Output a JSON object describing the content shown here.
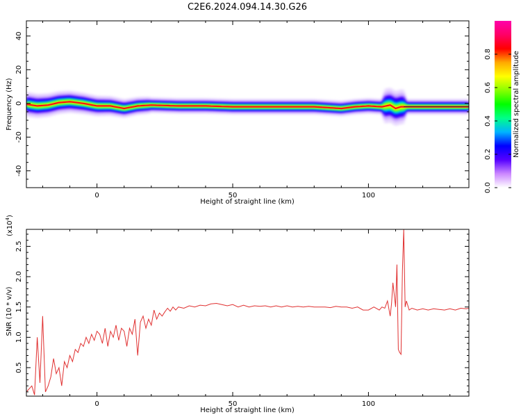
{
  "title": "C2E6.2024.094.14.30.G26",
  "chart_data": [
    {
      "type": "heatmap",
      "xlabel": "Height of straight line (km)",
      "ylabel": "Frequency (Hz)",
      "xlim": [
        -26,
        137
      ],
      "ylim": [
        -50,
        49
      ],
      "xticks": [
        0,
        50,
        100
      ],
      "yticks": [
        40,
        20,
        0,
        -20,
        -40
      ],
      "colorbar": {
        "label": "Normalized spectral amplitude",
        "range": [
          0,
          1
        ],
        "ticks": [
          "0.0",
          "0.2",
          "0.4",
          "0.6",
          "0.8"
        ],
        "colors": [
          "#ffffff",
          "#cc88ff",
          "#5500ff",
          "#0000ff",
          "#00b4ff",
          "#00ff88",
          "#00ff00",
          "#88ff00",
          "#ffff00",
          "#ffaa00",
          "#ff0000",
          "#ff0066",
          "#ff00aa"
        ]
      },
      "ridge": {
        "x": [
          -26,
          -22,
          -18,
          -14,
          -10,
          -5,
          0,
          5,
          10,
          15,
          20,
          30,
          40,
          50,
          60,
          70,
          80,
          90,
          95,
          100,
          105,
          108,
          110,
          112,
          115,
          120,
          130,
          137
        ],
        "freq": [
          -0.5,
          -1.5,
          -1,
          0.5,
          1,
          0,
          -1.5,
          -1.5,
          -3,
          -1.5,
          -1,
          -1.5,
          -1.5,
          -2,
          -2,
          -2,
          -2,
          -3,
          -2,
          -1.5,
          -2,
          -1,
          -3,
          -2,
          -2,
          -2,
          -2,
          -2
        ]
      },
      "grid": false
    },
    {
      "type": "line",
      "xlabel": "Height of straight line (km)",
      "ylabel": "SNR (10 * v/v)",
      "scale_label": "(x10",
      "scale_exp": "4",
      "scale_close": ")",
      "xlim": [
        -26,
        137
      ],
      "ylim": [
        0.03,
        2.78
      ],
      "xticks": [
        0,
        50,
        100
      ],
      "yticks": [
        "0.5",
        "1.0",
        "1.5",
        "2.0",
        "2.5"
      ],
      "color": "#e03030",
      "series": [
        {
          "x": [
            -26,
            -24,
            -23,
            -22,
            -21,
            -20,
            -19,
            -18,
            -17,
            -16,
            -15,
            -14,
            -13,
            -12,
            -11,
            -10,
            -9,
            -8,
            -7,
            -6,
            -5,
            -4,
            -3,
            -2,
            -1,
            0,
            1,
            2,
            3,
            4,
            5,
            6,
            7,
            8,
            9,
            10,
            11,
            12,
            13,
            14,
            15,
            16,
            17,
            18,
            19,
            20,
            21,
            22,
            23,
            24,
            25,
            26,
            27,
            28,
            29,
            30,
            32,
            34,
            36,
            38,
            40,
            42,
            44,
            46,
            48,
            50,
            52,
            54,
            56,
            58,
            60,
            62,
            64,
            66,
            68,
            70,
            72,
            74,
            76,
            78,
            80,
            82,
            84,
            86,
            88,
            90,
            92,
            94,
            96,
            98,
            100,
            102,
            104,
            105,
            106,
            107,
            108,
            108.5,
            109,
            110,
            110.5,
            111,
            111.5,
            112,
            112.5,
            113,
            113.5,
            114,
            115,
            116,
            118,
            120,
            122,
            124,
            126,
            128,
            130,
            132,
            134,
            136,
            137
          ],
          "y": [
            0.1,
            0.2,
            0.05,
            1.0,
            0.25,
            1.35,
            0.1,
            0.2,
            0.35,
            0.65,
            0.4,
            0.5,
            0.2,
            0.6,
            0.5,
            0.7,
            0.6,
            0.8,
            0.75,
            0.9,
            0.85,
            1.0,
            0.9,
            1.05,
            0.95,
            1.1,
            1.05,
            0.9,
            1.15,
            0.85,
            1.1,
            1.0,
            1.2,
            0.95,
            1.15,
            1.1,
            0.85,
            1.15,
            1.05,
            1.3,
            0.7,
            1.25,
            1.35,
            1.15,
            1.3,
            1.2,
            1.45,
            1.3,
            1.4,
            1.35,
            1.42,
            1.48,
            1.43,
            1.5,
            1.45,
            1.5,
            1.48,
            1.52,
            1.5,
            1.53,
            1.52,
            1.55,
            1.56,
            1.54,
            1.52,
            1.54,
            1.5,
            1.53,
            1.5,
            1.52,
            1.51,
            1.52,
            1.5,
            1.52,
            1.5,
            1.52,
            1.5,
            1.51,
            1.5,
            1.51,
            1.5,
            1.5,
            1.5,
            1.49,
            1.51,
            1.5,
            1.5,
            1.48,
            1.5,
            1.45,
            1.45,
            1.5,
            1.45,
            1.5,
            1.48,
            1.6,
            1.35,
            1.55,
            1.9,
            1.5,
            2.2,
            0.8,
            0.75,
            0.72,
            2.1,
            2.78,
            1.5,
            1.6,
            1.45,
            1.48,
            1.45,
            1.47,
            1.45,
            1.47,
            1.46,
            1.45,
            1.47,
            1.45,
            1.48,
            1.47,
            1.48
          ]
        }
      ]
    }
  ]
}
